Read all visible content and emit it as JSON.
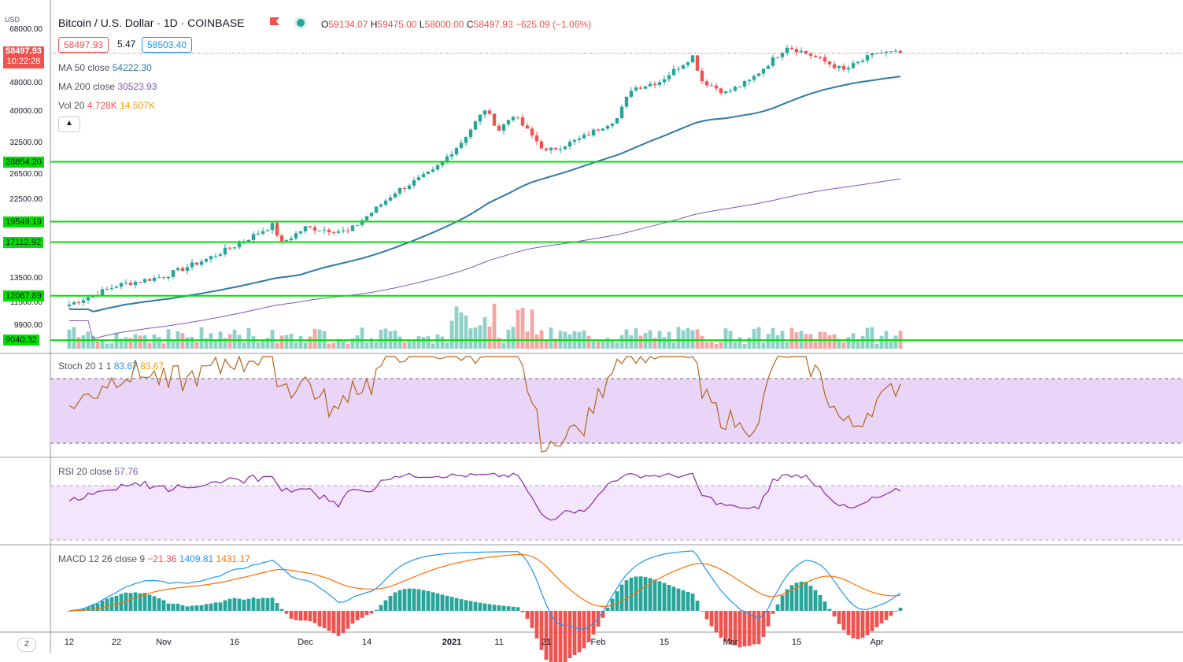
{
  "header": {
    "title": "Bitcoin / U.S. Dollar · 1D · COINBASE",
    "open_label": "O",
    "open": "59134.07",
    "high_label": "H",
    "high": "59475.00",
    "low_label": "L",
    "low": "58000.00",
    "close_label": "C",
    "close": "58497.93",
    "change": "−625.09 (−1.06%)",
    "bid": "58497.93",
    "spread": "5.47",
    "ask": "58503.40",
    "currency": "USD"
  },
  "price_tag": {
    "price": "58497.93",
    "countdown": "10:22:28"
  },
  "indicators": {
    "ma50": {
      "label": "MA 50 close",
      "value": "54222.30",
      "color": "#2e7aa8"
    },
    "ma200": {
      "label": "MA 200 close",
      "value": "30523.93",
      "color": "#7e57c2"
    },
    "vol": {
      "label": "Vol 20",
      "value": "4.728K",
      "ma": "14.507K"
    },
    "stoch": {
      "label": "Stoch 20 1 1",
      "k": "83.67",
      "d": "83.67"
    },
    "rsi": {
      "label": "RSI 20 close",
      "value": "57.76"
    },
    "macd": {
      "label": "MACD 12 26 close 9",
      "hist": "−21.36",
      "macd": "1409.81",
      "signal": "1431.17"
    }
  },
  "collapse_icon": "chevron-up-icon",
  "z_button": "Z",
  "colors": {
    "up": "#26a69a",
    "down": "#ef5350",
    "hline": "#00e000"
  },
  "chart_data": {
    "type": "candlestick",
    "title": "Bitcoin / U.S. Dollar · 1D · COINBASE",
    "y_axis_ticks": [
      "68000.00",
      "58000.00",
      "48000.00",
      "40000.00",
      "32500.00",
      "26500.00",
      "22500.00",
      "13500.00",
      "11500.00",
      "9900.00"
    ],
    "x_axis_ticks": [
      "12",
      "22",
      "Nov",
      "16",
      "Dec",
      "14",
      "2021",
      "11",
      "21",
      "Feb",
      "15",
      "Mar",
      "15",
      "Apr"
    ],
    "horizontal_levels": [
      "28854.20",
      "19549.19",
      "17112.92",
      "12067.89",
      "9040.32"
    ],
    "ylim": [
      9040,
      64000
    ],
    "y_scale": "log",
    "close_series_keypoints": [
      {
        "x": "Oct 12",
        "y": 11400
      },
      {
        "x": "Oct 22",
        "y": 12900
      },
      {
        "x": "Nov 01",
        "y": 13700
      },
      {
        "x": "Nov 10",
        "y": 15300
      },
      {
        "x": "Nov 16",
        "y": 16700
      },
      {
        "x": "Nov 24",
        "y": 19100
      },
      {
        "x": "Nov 26",
        "y": 17000
      },
      {
        "x": "Dec 01",
        "y": 18800
      },
      {
        "x": "Dec 10",
        "y": 18300
      },
      {
        "x": "Dec 16",
        "y": 21300
      },
      {
        "x": "Dec 20",
        "y": 23700
      },
      {
        "x": "Dec 28",
        "y": 27100
      },
      {
        "x": "Jan 03",
        "y": 32800
      },
      {
        "x": "Jan 08",
        "y": 40600
      },
      {
        "x": "Jan 11",
        "y": 35500
      },
      {
        "x": "Jan 14",
        "y": 39200
      },
      {
        "x": "Jan 21",
        "y": 30800
      },
      {
        "x": "Jan 28",
        "y": 33400
      },
      {
        "x": "Feb 05",
        "y": 38300
      },
      {
        "x": "Feb 08",
        "y": 46400
      },
      {
        "x": "Feb 14",
        "y": 48700
      },
      {
        "x": "Feb 21",
        "y": 57400
      },
      {
        "x": "Feb 23",
        "y": 48900
      },
      {
        "x": "Feb 28",
        "y": 45200
      },
      {
        "x": "Mar 05",
        "y": 48800
      },
      {
        "x": "Mar 13",
        "y": 61200
      },
      {
        "x": "Mar 18",
        "y": 57800
      },
      {
        "x": "Mar 25",
        "y": 52300
      },
      {
        "x": "Apr 01",
        "y": 58700
      },
      {
        "x": "Apr 06",
        "y": 58497
      }
    ]
  }
}
